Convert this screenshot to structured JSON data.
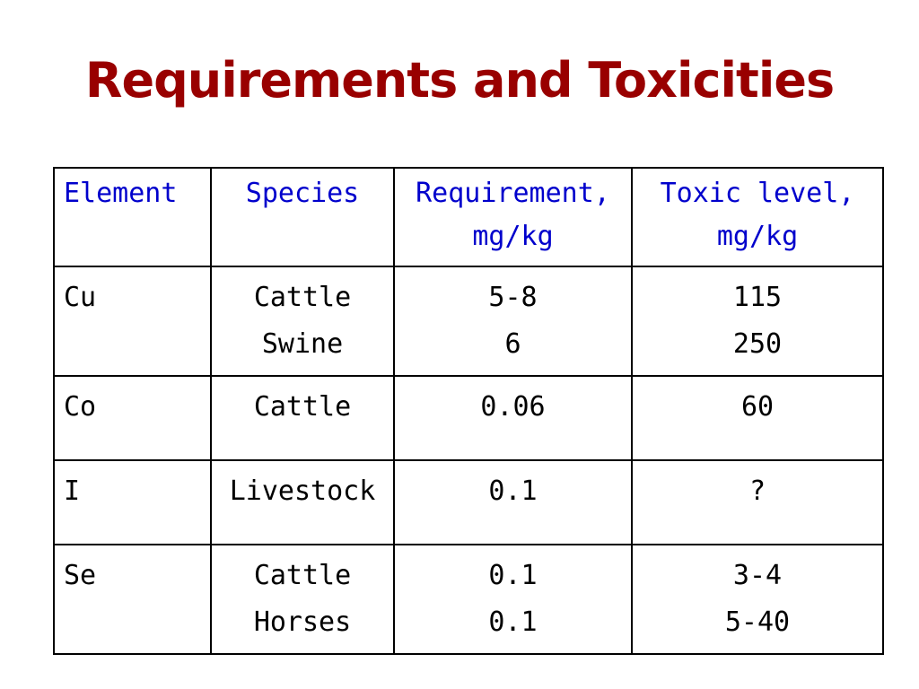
{
  "title": "Requirements and Toxicities",
  "table": {
    "headers": {
      "element": "Element",
      "species": "Species",
      "requirement_line1": "Requirement,",
      "requirement_line2": "mg/kg",
      "toxic_line1": "Toxic level,",
      "toxic_line2": "mg/kg"
    },
    "rows": [
      {
        "element": "Cu",
        "species": [
          "Cattle",
          "Swine"
        ],
        "requirement": [
          "5-8",
          "6"
        ],
        "toxic": [
          "115",
          "250"
        ]
      },
      {
        "element": "Co",
        "species": [
          "Cattle"
        ],
        "requirement": [
          "0.06"
        ],
        "toxic": [
          "60"
        ]
      },
      {
        "element": "I",
        "species": [
          "Livestock"
        ],
        "requirement": [
          "0.1"
        ],
        "toxic": [
          "?"
        ]
      },
      {
        "element": "Se",
        "species": [
          "Cattle",
          "Horses"
        ],
        "requirement": [
          "0.1",
          "0.1"
        ],
        "toxic": [
          "3-4",
          "5-40"
        ]
      }
    ]
  },
  "colors": {
    "title": "#990000",
    "header_text": "#0000cc",
    "body_text": "#000000",
    "border": "#000000"
  }
}
